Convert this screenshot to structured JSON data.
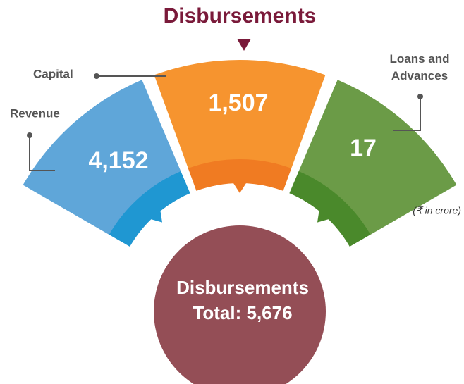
{
  "title": "Disbursements",
  "segments": [
    {
      "label": "Revenue",
      "value": "4,152"
    },
    {
      "label": "Capital",
      "value": "1,507"
    },
    {
      "label": "Loans and Advances",
      "value": "17"
    }
  ],
  "unit_note": "(₹ in crore)",
  "center": {
    "title": "Disbursements",
    "total": "Total: 5,676"
  }
}
